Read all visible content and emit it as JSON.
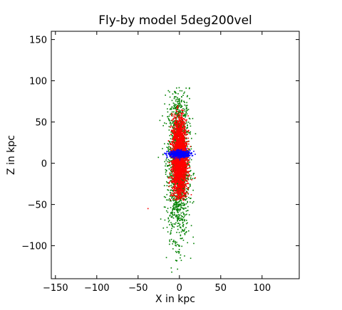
{
  "chart_data": {
    "type": "scatter",
    "title": "Fly-by model 5deg200vel",
    "xlabel": "X in kpc",
    "ylabel": "Z in kpc",
    "xlim": [
      -155,
      145
    ],
    "ylim": [
      -140,
      160
    ],
    "xticks": [
      -150,
      -100,
      -50,
      0,
      50,
      100
    ],
    "yticks": [
      -100,
      -50,
      0,
      50,
      100,
      150
    ],
    "xtick_labels": [
      "−150",
      "−100",
      "−50",
      "0",
      "50",
      "100"
    ],
    "ytick_labels": [
      "−100",
      "−50",
      "0",
      "50",
      "100",
      "150"
    ],
    "grid": false,
    "legend": "none",
    "series": [
      {
        "color": "#008000",
        "count": 1800,
        "distribution": {
          "center_x": -1,
          "center_z": 0,
          "sigma_x": 6.5,
          "sigma_z": 45,
          "z_range": [
            -140,
            92
          ]
        }
      },
      {
        "color": "#ff0000",
        "count": 2500,
        "distribution": {
          "center_x": 0,
          "center_z": 5,
          "sigma_x": 4.5,
          "sigma_z": 25,
          "z_range": [
            -45,
            70
          ]
        }
      },
      {
        "color": "#0000ff",
        "count": 450,
        "distribution": {
          "center_x": 0,
          "center_z": 11,
          "sigma_x": 7,
          "sigma_z": 2,
          "x_range": [
            -18,
            20
          ]
        }
      }
    ],
    "outliers": [
      {
        "x": -38,
        "z": -55,
        "color": "#ff0000"
      }
    ]
  }
}
